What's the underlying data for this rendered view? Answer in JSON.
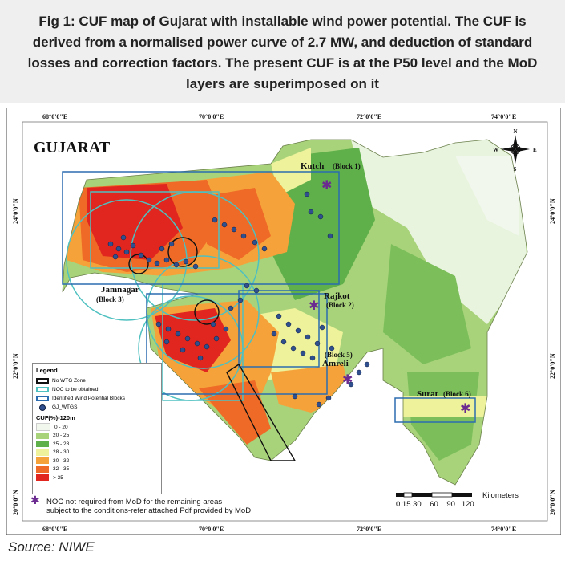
{
  "caption": "Fig 1: CUF map of Gujarat with installable wind power potential. The CUF is derived from a normalised power curve of 2.7 MW, and deduction of standard losses and correction factors. The present CUF is at the P50 level and the MoD layers are superimposed on it",
  "source": "Source: NIWE",
  "map": {
    "title": "GUJARAT",
    "lon_ticks": [
      "68°0'0\"E",
      "70°0'0\"E",
      "72°0'0\"E",
      "74°0'0\"E"
    ],
    "lat_ticks": [
      "24°0'0\"N",
      "22°0'0\"N",
      "20°0'0\"N"
    ],
    "compass": {
      "n": "N",
      "s": "S",
      "e": "E",
      "w": "W"
    },
    "blocks": {
      "kutch": "Kutch",
      "kutch_block": "(Block 1)",
      "rajkot": "Rajkot",
      "rajkot_block": "(Block 2)",
      "jamnagar": "Jamnagar",
      "jamnagar_block": "(Block 3)",
      "amreli_block": "(Block 5)",
      "amreli": "Amreli",
      "surat": "Surat",
      "surat_block": "(Block 6)"
    },
    "scale": {
      "label": "Kilometers",
      "ticks": "0 15 30    60    90   120"
    }
  },
  "legend": {
    "title": "Legend",
    "items": [
      {
        "label": "No WTG Zone",
        "color": "#111111",
        "style": "outline"
      },
      {
        "label": "NOC to be obtained",
        "color": "#4fc0c0",
        "style": "outline"
      },
      {
        "label": "Identified Wind Potential Blocks",
        "color": "#2b6cb0",
        "style": "outline"
      },
      {
        "label": "GJ_WTGS",
        "color": "#2f4f8f",
        "style": "dot"
      }
    ],
    "cuf_title": "CUF(%)-120m",
    "cuf_classes": [
      {
        "label": "0 - 20",
        "color": "#f2f7ee"
      },
      {
        "label": "20 - 25",
        "color": "#a8d37a"
      },
      {
        "label": "25 - 28",
        "color": "#5fb04a"
      },
      {
        "label": "28 - 30",
        "color": "#eef29a"
      },
      {
        "label": "30 - 32",
        "color": "#f6a23a"
      },
      {
        "label": "32 - 35",
        "color": "#ee6a26"
      },
      {
        "label": "> 35",
        "color": "#e0261e"
      }
    ]
  },
  "noc_note": {
    "line1": "NOC not required from MoD for the remaining areas",
    "line2": "subject to the conditions-refer attached Pdf provided by MoD"
  }
}
